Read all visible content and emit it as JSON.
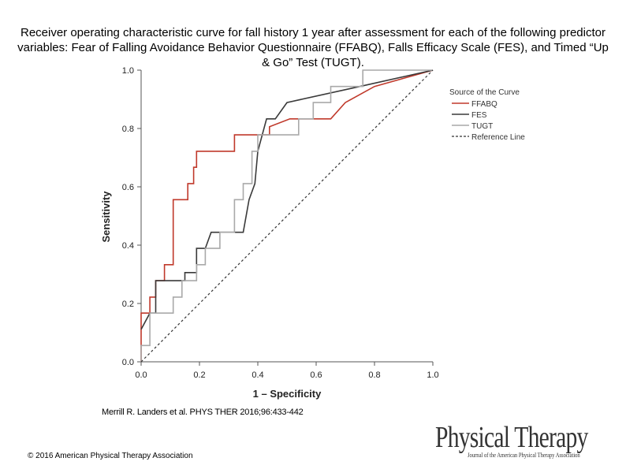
{
  "title": "Receiver operating characteristic curve for fall history 1 year after assessment for each of the following predictor variables: Fear of Falling Avoidance Behavior Questionnaire (FFABQ), Falls Efficacy Scale (FES), and Timed “Up & Go” Test (TUGT).",
  "citation": "Merrill R. Landers et al. PHYS THER 2016;96:433-442",
  "copyright": "© 2016 American Physical Therapy Association",
  "journal_logo": {
    "name": "Physical Therapy",
    "subtitle": "Journal of the American Physical Therapy Association"
  },
  "chart_data": {
    "type": "line",
    "xlabel": "1 – Specificity",
    "ylabel": "Sensitivity",
    "xlim": [
      0,
      1
    ],
    "ylim": [
      0,
      1
    ],
    "xticks": [
      "0.0",
      "0.2",
      "0.4",
      "0.6",
      "0.8",
      "1.0"
    ],
    "yticks": [
      "0.0",
      "0.2",
      "0.4",
      "0.6",
      "0.8",
      "1.0"
    ],
    "legend_title": "Source of the Curve",
    "legend_position": "right",
    "series": [
      {
        "name": "FFABQ",
        "color": "#c0392b",
        "dash": false,
        "points": [
          [
            0,
            0
          ],
          [
            0,
            0.167
          ],
          [
            0.03,
            0.167
          ],
          [
            0.03,
            0.222
          ],
          [
            0.05,
            0.222
          ],
          [
            0.05,
            0.278
          ],
          [
            0.08,
            0.278
          ],
          [
            0.08,
            0.333
          ],
          [
            0.11,
            0.333
          ],
          [
            0.11,
            0.556
          ],
          [
            0.16,
            0.556
          ],
          [
            0.16,
            0.611
          ],
          [
            0.18,
            0.611
          ],
          [
            0.18,
            0.667
          ],
          [
            0.19,
            0.667
          ],
          [
            0.19,
            0.722
          ],
          [
            0.32,
            0.722
          ],
          [
            0.32,
            0.778
          ],
          [
            0.44,
            0.778
          ],
          [
            0.44,
            0.806
          ],
          [
            0.51,
            0.833
          ],
          [
            0.65,
            0.833
          ],
          [
            0.7,
            0.889
          ],
          [
            0.8,
            0.944
          ],
          [
            1,
            1
          ]
        ]
      },
      {
        "name": "FES",
        "color": "#3a3a3a",
        "dash": false,
        "points": [
          [
            0,
            0.111
          ],
          [
            0.03,
            0.167
          ],
          [
            0.05,
            0.167
          ],
          [
            0.05,
            0.278
          ],
          [
            0.15,
            0.278
          ],
          [
            0.15,
            0.306
          ],
          [
            0.19,
            0.306
          ],
          [
            0.19,
            0.389
          ],
          [
            0.22,
            0.389
          ],
          [
            0.24,
            0.444
          ],
          [
            0.35,
            0.444
          ],
          [
            0.37,
            0.556
          ],
          [
            0.39,
            0.611
          ],
          [
            0.4,
            0.722
          ],
          [
            0.43,
            0.833
          ],
          [
            0.46,
            0.833
          ],
          [
            0.5,
            0.889
          ],
          [
            0.75,
            0.944
          ],
          [
            1,
            1
          ]
        ]
      },
      {
        "name": "TUGT",
        "color": "#a9a9a9",
        "dash": false,
        "points": [
          [
            0,
            0
          ],
          [
            0,
            0.056
          ],
          [
            0.03,
            0.056
          ],
          [
            0.03,
            0.167
          ],
          [
            0.08,
            0.167
          ],
          [
            0.08,
            0.167
          ],
          [
            0.11,
            0.167
          ],
          [
            0.11,
            0.222
          ],
          [
            0.14,
            0.222
          ],
          [
            0.14,
            0.278
          ],
          [
            0.19,
            0.278
          ],
          [
            0.19,
            0.333
          ],
          [
            0.22,
            0.333
          ],
          [
            0.22,
            0.389
          ],
          [
            0.27,
            0.389
          ],
          [
            0.27,
            0.444
          ],
          [
            0.32,
            0.444
          ],
          [
            0.32,
            0.556
          ],
          [
            0.35,
            0.556
          ],
          [
            0.35,
            0.611
          ],
          [
            0.38,
            0.611
          ],
          [
            0.38,
            0.722
          ],
          [
            0.4,
            0.722
          ],
          [
            0.4,
            0.778
          ],
          [
            0.54,
            0.778
          ],
          [
            0.54,
            0.833
          ],
          [
            0.59,
            0.833
          ],
          [
            0.59,
            0.889
          ],
          [
            0.65,
            0.889
          ],
          [
            0.65,
            0.944
          ],
          [
            0.76,
            0.944
          ],
          [
            0.76,
            1
          ],
          [
            1,
            1
          ]
        ]
      },
      {
        "name": "Reference Line",
        "color": "#333333",
        "dash": true,
        "points": [
          [
            0,
            0
          ],
          [
            1,
            1
          ]
        ]
      }
    ]
  }
}
